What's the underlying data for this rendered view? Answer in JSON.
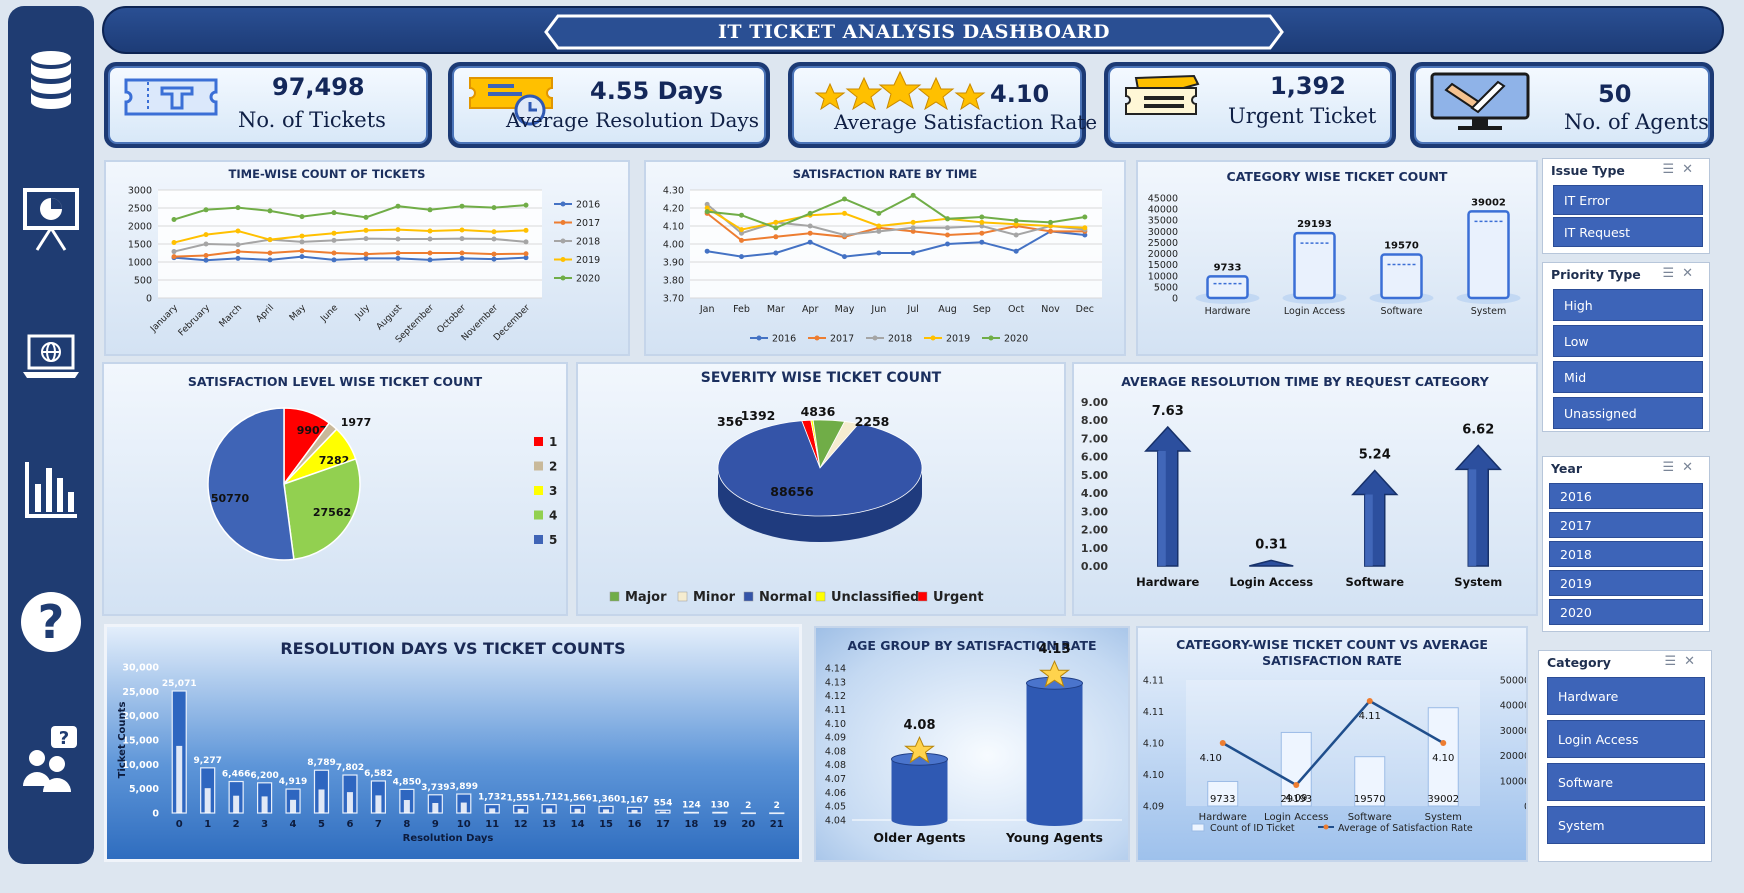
{
  "dashboard": {
    "title": "IT TICKET ANALYSIS DASHBOARD"
  },
  "kpis": [
    {
      "value": "97,498",
      "label": "No. of  Tickets",
      "icon": "ticket-icon"
    },
    {
      "value": "4.55  Days",
      "label": "Average Resolution Days",
      "icon": "ticket-clock-icon"
    },
    {
      "value": "4.10",
      "label": "Average Satisfaction Rate",
      "icon": "stars-icon"
    },
    {
      "value": "1,392",
      "label": "Urgent Ticket",
      "icon": "tickets-icon"
    },
    {
      "value": "50",
      "label": "No. of Agents",
      "icon": "monitor-tools-icon"
    }
  ],
  "nav": {
    "icons": [
      "database-icon",
      "presentation-icon",
      "laptop-globe-icon",
      "bar-chart-icon",
      "help-icon",
      "support-agents-icon"
    ]
  },
  "slicers": {
    "issue_type": {
      "title": "Issue Type",
      "items": [
        "IT Error",
        "IT Request"
      ]
    },
    "priority_type": {
      "title": "Priority Type",
      "items": [
        "High",
        "Low",
        "Mid",
        "Unassigned"
      ]
    },
    "year": {
      "title": "Year",
      "items": [
        "2016",
        "2017",
        "2018",
        "2019",
        "2020"
      ]
    },
    "category": {
      "title": "Category",
      "items": [
        "Hardware",
        "Login Access",
        "Software",
        "System"
      ]
    }
  },
  "colors": {
    "s2016": "#4472c4",
    "s2017": "#ed7d31",
    "s2018": "#a5a5a5",
    "s2019": "#ffc000",
    "s2020": "#70ad47",
    "navy": "#1f3c72",
    "bar": "#2f59b3"
  },
  "chart_data": [
    {
      "id": "time_wise",
      "type": "line",
      "title": "TIME-WISE COUNT OF TICKETS",
      "categories": [
        "January",
        "February",
        "March",
        "April",
        "May",
        "June",
        "July",
        "August",
        "September",
        "October",
        "November",
        "December"
      ],
      "ylim": [
        0,
        3000
      ],
      "yticks": [
        "0",
        "500",
        "1000",
        "1500",
        "2000",
        "2500",
        "3000"
      ],
      "legend": "right",
      "series": [
        {
          "name": "2016",
          "values": [
            1120,
            1050,
            1100,
            1060,
            1150,
            1060,
            1100,
            1100,
            1060,
            1100,
            1080,
            1120
          ]
        },
        {
          "name": "2017",
          "values": [
            1150,
            1180,
            1290,
            1250,
            1310,
            1250,
            1220,
            1250,
            1250,
            1250,
            1220,
            1230
          ]
        },
        {
          "name": "2018",
          "values": [
            1290,
            1500,
            1480,
            1620,
            1560,
            1600,
            1650,
            1640,
            1640,
            1650,
            1640,
            1560
          ]
        },
        {
          "name": "2019",
          "values": [
            1540,
            1760,
            1860,
            1620,
            1720,
            1800,
            1880,
            1900,
            1860,
            1890,
            1840,
            1880
          ]
        },
        {
          "name": "2020",
          "values": [
            2180,
            2450,
            2510,
            2420,
            2260,
            2370,
            2240,
            2550,
            2450,
            2550,
            2510,
            2580
          ]
        }
      ]
    },
    {
      "id": "satisfaction_time",
      "type": "line",
      "title": "SATISFACTION RATE BY TIME",
      "categories": [
        "Jan",
        "Feb",
        "Mar",
        "Apr",
        "May",
        "Jun",
        "Jul",
        "Aug",
        "Sep",
        "Oct",
        "Nov",
        "Dec"
      ],
      "ylim": [
        3.7,
        4.3
      ],
      "yticks": [
        "3.70",
        "3.80",
        "3.90",
        "4.00",
        "4.10",
        "4.20",
        "4.30"
      ],
      "legend": "bottom",
      "series": [
        {
          "name": "2016",
          "values": [
            3.96,
            3.93,
            3.95,
            4.01,
            3.93,
            3.95,
            3.95,
            4.0,
            4.01,
            3.96,
            4.07,
            4.05
          ]
        },
        {
          "name": "2017",
          "values": [
            4.17,
            4.02,
            4.04,
            4.06,
            4.04,
            4.09,
            4.07,
            4.05,
            4.06,
            4.1,
            4.07,
            4.07
          ]
        },
        {
          "name": "2018",
          "values": [
            4.22,
            4.06,
            4.12,
            4.1,
            4.05,
            4.07,
            4.09,
            4.09,
            4.1,
            4.05,
            4.1,
            4.08
          ]
        },
        {
          "name": "2019",
          "values": [
            4.2,
            4.08,
            4.12,
            4.16,
            4.17,
            4.1,
            4.12,
            4.14,
            4.12,
            4.11,
            4.1,
            4.09
          ]
        },
        {
          "name": "2020",
          "values": [
            4.18,
            4.16,
            4.09,
            4.17,
            4.25,
            4.17,
            4.27,
            4.14,
            4.15,
            4.13,
            4.12,
            4.15
          ]
        }
      ]
    },
    {
      "id": "category_count",
      "type": "bar",
      "title": "CATEGORY WISE TICKET COUNT",
      "categories": [
        "Hardware",
        "Login Access",
        "Software",
        "System"
      ],
      "values": [
        9733,
        29193,
        19570,
        39002
      ],
      "ylim": [
        0,
        45000
      ],
      "yticks": [
        "0",
        "5000",
        "10000",
        "15000",
        "20000",
        "25000",
        "30000",
        "35000",
        "40000",
        "45000"
      ]
    },
    {
      "id": "satisfaction_level",
      "type": "pie",
      "title": "SATISFACTION LEVEL WISE TICKET COUNT",
      "categories": [
        "1",
        "2",
        "3",
        "4",
        "5"
      ],
      "values": [
        9907,
        1977,
        7282,
        27562,
        50770
      ],
      "colors": [
        "#ff0000",
        "#c9b99a",
        "#ffff00",
        "#92d050",
        "#3f64b6"
      ],
      "legend": "right"
    },
    {
      "id": "severity",
      "type": "pie",
      "title": "SEVERITY WISE TICKET COUNT",
      "categories": [
        "Major",
        "Minor",
        "Normal",
        "Unclassified",
        "Urgent"
      ],
      "values": [
        4836,
        2258,
        88656,
        356,
        1392
      ],
      "colors": [
        "#70ad47",
        "#f5ecd0",
        "#3454a8",
        "#ffff00",
        "#ff0000"
      ],
      "legend": "bottom"
    },
    {
      "id": "avg_resolution",
      "type": "bar",
      "title": "AVERAGE RESOLUTION TIME BY REQUEST CATEGORY",
      "categories": [
        "Hardware",
        "Login Access",
        "Software",
        "System"
      ],
      "values": [
        7.63,
        0.31,
        5.24,
        6.62
      ],
      "ylim": [
        0,
        9
      ],
      "yticks": [
        "0.00",
        "1.00",
        "2.00",
        "3.00",
        "4.00",
        "5.00",
        "6.00",
        "7.00",
        "8.00",
        "9.00"
      ]
    },
    {
      "id": "resolution_days",
      "type": "bar",
      "title": "RESOLUTION DAYS VS TICKET COUNTS",
      "xlabel": "Resolution Days",
      "ylabel": "Ticket Counts",
      "categories": [
        "0",
        "1",
        "2",
        "3",
        "4",
        "5",
        "6",
        "7",
        "8",
        "9",
        "10",
        "11",
        "12",
        "13",
        "14",
        "15",
        "16",
        "17",
        "18",
        "19",
        "20",
        "21"
      ],
      "values": [
        25071,
        9277,
        6466,
        6200,
        4919,
        8789,
        7802,
        6582,
        4850,
        3739,
        3899,
        1732,
        1555,
        1712,
        1566,
        1360,
        1167,
        554,
        124,
        130,
        2,
        2
      ],
      "labels": [
        "25,071",
        "9,277",
        "6,466",
        "6,200",
        "4,919",
        "8,789",
        "7,802",
        "6,582",
        "4,850",
        "3,739",
        "3,899",
        "1,732",
        "1,555",
        "1,712",
        "1,566",
        "1,360",
        "1,167",
        "554",
        "124",
        "130",
        "2",
        "2"
      ],
      "ylim": [
        0,
        30000
      ],
      "yticks": [
        "0",
        "5,000",
        "10,000",
        "15,000",
        "20,000",
        "25,000",
        "30,000"
      ]
    },
    {
      "id": "age_group",
      "type": "bar",
      "title": "AGE GROUP BY SATISFACTION RATE",
      "categories": [
        "Older Agents",
        "Young Agents"
      ],
      "values": [
        4.08,
        4.13
      ],
      "ylim": [
        4.04,
        4.14
      ],
      "yticks": [
        "4.04",
        "4.05",
        "4.06",
        "4.07",
        "4.08",
        "4.08",
        "4.09",
        "4.10",
        "4.11",
        "4.12",
        "4.13",
        "4.14"
      ]
    },
    {
      "id": "category_combo",
      "type": "bar",
      "title": "CATEGORY-WISE TICKET COUNT VS AVERAGE SATISFACTION RATE",
      "categories": [
        "Hardware",
        "Login Access",
        "Software",
        "System"
      ],
      "series": [
        {
          "name": "Count of ID Ticket",
          "values": [
            9733,
            29193,
            19570,
            39002
          ]
        },
        {
          "name": "Average of Satisfaction Rate",
          "values": [
            4.1,
            4.09,
            4.11,
            4.1
          ]
        }
      ],
      "y2lim": [
        0,
        50000
      ],
      "y2ticks": [
        "0",
        "10000",
        "20000",
        "30000",
        "40000",
        "50000"
      ],
      "yticks": [
        "4.09",
        "4.10",
        "4.10",
        "4.11",
        "4.11"
      ],
      "rate_labels": [
        "4.10",
        "4.09",
        "4.11",
        "4.10"
      ],
      "legend": "bottom"
    }
  ]
}
